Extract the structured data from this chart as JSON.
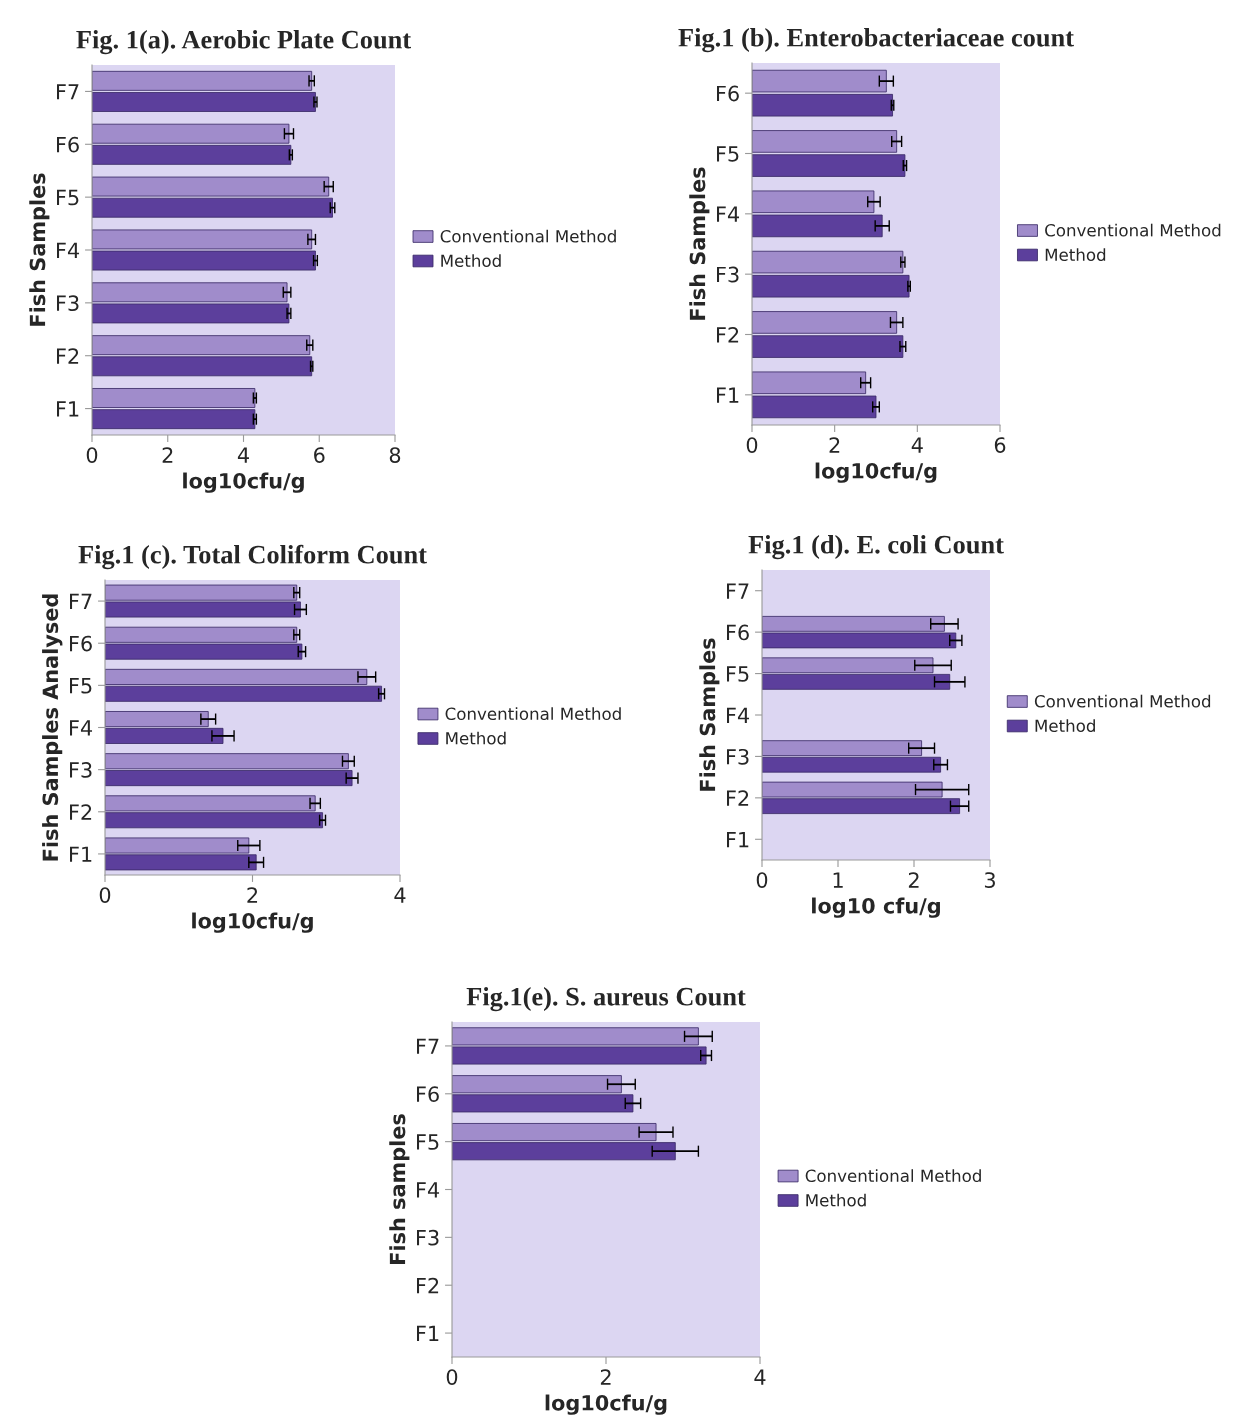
{
  "chart_data": [
    {
      "type": "bar",
      "orientation": "horizontal",
      "title": "Fig. 1(a). Aerobic Plate Count",
      "xlabel": "log10cfu/g",
      "ylabel": "Fish Samples",
      "categories": [
        "F7",
        "F6",
        "F5",
        "F4",
        "F3",
        "F2",
        "F1"
      ],
      "xlim": [
        0,
        8
      ],
      "xticks": [
        0,
        2,
        4,
        6,
        8
      ],
      "legend": "right",
      "grid": false,
      "series": [
        {
          "name": "Conventional Method",
          "color": "#a08ccb",
          "values": [
            5.8,
            5.2,
            6.25,
            5.8,
            5.15,
            5.75,
            4.3
          ],
          "errors": [
            0.07,
            0.12,
            0.12,
            0.1,
            0.1,
            0.08,
            0.04
          ]
        },
        {
          "name": "Method",
          "color": "#5c3f9c",
          "values": [
            5.9,
            5.25,
            6.35,
            5.9,
            5.2,
            5.8,
            4.3
          ],
          "errors": [
            0.04,
            0.04,
            0.06,
            0.05,
            0.05,
            0.03,
            0.04
          ]
        }
      ]
    },
    {
      "type": "bar",
      "orientation": "horizontal",
      "title": "Fig.1 (b). Enterobacteriaceae count",
      "xlabel": "log10cfu/g",
      "ylabel": "Fish Samples",
      "categories": [
        "F6",
        "F5",
        "F4",
        "F3",
        "F2",
        "F1"
      ],
      "xlim": [
        0,
        6
      ],
      "xticks": [
        0,
        2,
        4,
        6
      ],
      "legend": "right",
      "grid": false,
      "series": [
        {
          "name": "Conventional Method",
          "color": "#a08ccb",
          "values": [
            3.25,
            3.5,
            2.95,
            3.65,
            3.5,
            2.75
          ],
          "errors": [
            0.17,
            0.12,
            0.15,
            0.05,
            0.15,
            0.12
          ]
        },
        {
          "name": "Method",
          "color": "#5c3f9c",
          "values": [
            3.4,
            3.7,
            3.15,
            3.8,
            3.65,
            3.0
          ],
          "errors": [
            0.03,
            0.04,
            0.17,
            0.03,
            0.07,
            0.08
          ]
        }
      ]
    },
    {
      "type": "bar",
      "orientation": "horizontal",
      "title": "Fig.1 (c). Total Coliform Count",
      "xlabel": "log10cfu/g",
      "ylabel": "Fish Samples Analysed",
      "categories": [
        "F7",
        "F6",
        "F5",
        "F4",
        "F3",
        "F2",
        "F1"
      ],
      "xlim": [
        0,
        4
      ],
      "xticks": [
        0,
        2,
        4
      ],
      "legend": "right",
      "grid": false,
      "series": [
        {
          "name": "Conventional Method",
          "color": "#a08ccb",
          "values": [
            2.6,
            2.6,
            3.55,
            1.4,
            3.3,
            2.85,
            1.95
          ],
          "errors": [
            0.04,
            0.04,
            0.12,
            0.1,
            0.08,
            0.07,
            0.15
          ]
        },
        {
          "name": "Method",
          "color": "#5c3f9c",
          "values": [
            2.65,
            2.67,
            3.75,
            1.6,
            3.35,
            2.95,
            2.05
          ],
          "errors": [
            0.08,
            0.05,
            0.04,
            0.15,
            0.08,
            0.04,
            0.1
          ]
        }
      ]
    },
    {
      "type": "bar",
      "orientation": "horizontal",
      "title": "Fig.1 (d). E. coli Count",
      "xlabel": "log10 cfu/g",
      "ylabel": "Fish Samples",
      "categories": [
        "F7",
        "F6",
        "F5",
        "F4",
        "F3",
        "F2",
        "F1"
      ],
      "xlim": [
        0,
        3
      ],
      "xticks": [
        0,
        1,
        2,
        3
      ],
      "legend": "right",
      "grid": false,
      "series": [
        {
          "name": "Conventional Method",
          "color": "#a08ccb",
          "values": [
            null,
            2.4,
            2.25,
            null,
            2.1,
            2.37,
            null
          ],
          "errors": [
            null,
            0.18,
            0.24,
            null,
            0.17,
            0.35,
            null
          ]
        },
        {
          "name": "Method",
          "color": "#5c3f9c",
          "values": [
            null,
            2.55,
            2.47,
            null,
            2.35,
            2.6,
            null
          ],
          "errors": [
            null,
            0.08,
            0.2,
            null,
            0.09,
            0.12,
            null
          ]
        }
      ]
    },
    {
      "type": "bar",
      "orientation": "horizontal",
      "title": "Fig.1(e). S. aureus Count",
      "xlabel": "log10cfu/g",
      "ylabel": "Fish samples",
      "categories": [
        "F7",
        "F6",
        "F5",
        "F4",
        "F3",
        "F2",
        "F1"
      ],
      "xlim": [
        0,
        4
      ],
      "xticks": [
        0,
        2,
        4
      ],
      "legend": "right",
      "grid": false,
      "series": [
        {
          "name": "Conventional Method",
          "color": "#a08ccb",
          "values": [
            3.2,
            2.2,
            2.65,
            null,
            null,
            null,
            null
          ],
          "errors": [
            0.18,
            0.18,
            0.22,
            null,
            null,
            null,
            null
          ]
        },
        {
          "name": "Method",
          "color": "#5c3f9c",
          "values": [
            3.3,
            2.35,
            2.9,
            null,
            null,
            null,
            null
          ],
          "errors": [
            0.07,
            0.1,
            0.3,
            null,
            null,
            null,
            null
          ]
        }
      ]
    }
  ]
}
